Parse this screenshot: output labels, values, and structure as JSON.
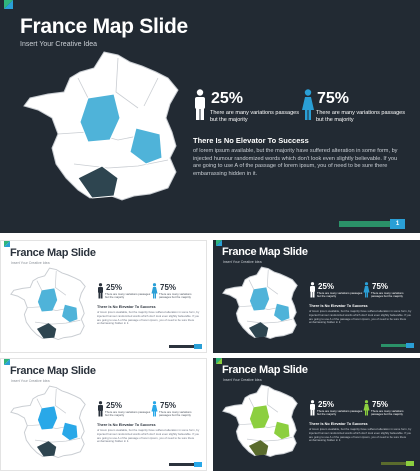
{
  "title": "France Map Slide",
  "subtitle": "Insert Your Creative Idea",
  "stat_male": {
    "percent": "25%",
    "text": "There are many variations passages but the majority"
  },
  "stat_female": {
    "percent": "75%",
    "text": "There are many variations passages but the majority"
  },
  "heading": "There Is No Elevator To Success",
  "body": "of lorem ipsum available, but the majority have suffered alteration in some form, by injected humour randomized words which don't look even slightly believable. If you are going to use A of the passage of lorem ipsum, you of need to be sure there embarrassing hidden in it.",
  "page_number": "1",
  "colors": {
    "dark_bg": "#222a33",
    "accent_green": "#2fb57c",
    "accent_blue": "#2a9fd6",
    "map_blue": "#4fb3d9",
    "map_dark": "#2e4550",
    "map_bright_blue": "#29a8e8",
    "map_green": "#8ccf3f",
    "map_olive": "#5a6b2d"
  },
  "icons": [
    "male-icon",
    "female-icon"
  ]
}
